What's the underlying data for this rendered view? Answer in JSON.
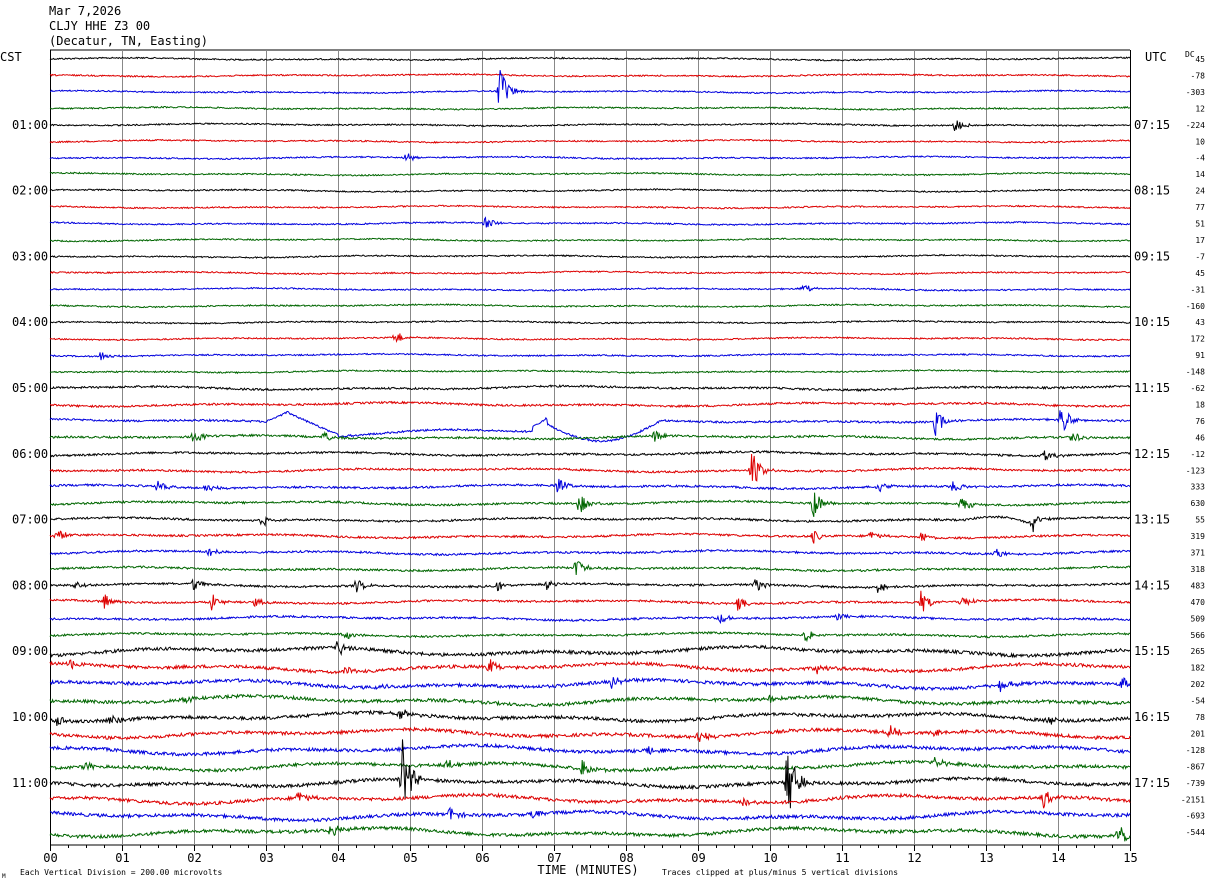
{
  "header": {
    "date": "Mar 7,2026",
    "station": "CLJY HHE Z3 00",
    "location": "(Decatur, TN, Easting)"
  },
  "left_tz": "CST",
  "right_tz": "UTC",
  "dc_label": "DC",
  "footer": {
    "scale_note": "Each Vertical Division =  200.00 microvolts",
    "xlabel": "TIME (MINUTES)",
    "clip_note": "Traces clipped at plus/minus 5 vertical divisions",
    "logo_text": "M"
  },
  "colors": {
    "black": "#000000",
    "red": "#dd0000",
    "blue": "#0000dd",
    "green": "#006600",
    "grid": "#888888"
  },
  "chart_data": {
    "type": "line",
    "x_ticks": [
      "00",
      "01",
      "02",
      "03",
      "04",
      "05",
      "06",
      "07",
      "08",
      "09",
      "10",
      "11",
      "12",
      "13",
      "14",
      "15"
    ],
    "xlim": [
      0,
      15
    ],
    "trace_color_cycle": [
      "black",
      "red",
      "blue",
      "green"
    ],
    "traces_count": 48,
    "left_hour_labels": [
      {
        "trace": 4,
        "text": "01:00"
      },
      {
        "trace": 8,
        "text": "02:00"
      },
      {
        "trace": 12,
        "text": "03:00"
      },
      {
        "trace": 16,
        "text": "04:00"
      },
      {
        "trace": 20,
        "text": "05:00"
      },
      {
        "trace": 24,
        "text": "06:00"
      },
      {
        "trace": 28,
        "text": "07:00"
      },
      {
        "trace": 32,
        "text": "08:00"
      },
      {
        "trace": 36,
        "text": "09:00"
      },
      {
        "trace": 40,
        "text": "10:00"
      },
      {
        "trace": 44,
        "text": "11:00"
      }
    ],
    "right_hour_labels": [
      {
        "trace": 4,
        "text": "07:15"
      },
      {
        "trace": 8,
        "text": "08:15"
      },
      {
        "trace": 12,
        "text": "09:15"
      },
      {
        "trace": 16,
        "text": "10:15"
      },
      {
        "trace": 20,
        "text": "11:15"
      },
      {
        "trace": 24,
        "text": "12:15"
      },
      {
        "trace": 28,
        "text": "13:15"
      },
      {
        "trace": 32,
        "text": "14:15"
      },
      {
        "trace": 36,
        "text": "15:15"
      },
      {
        "trace": 40,
        "text": "16:15"
      },
      {
        "trace": 44,
        "text": "17:15"
      }
    ],
    "dc_offsets": [
      "45",
      "-78",
      "-303",
      "12",
      "-224",
      "10",
      "-4",
      "14",
      "24",
      "77",
      "51",
      "17",
      "-7",
      "45",
      "-31",
      "-160",
      "43",
      "172",
      "91",
      "-148",
      "-62",
      "18",
      "76",
      "46",
      "-12",
      "-123",
      "333",
      "630",
      "55",
      "319",
      "371",
      "318",
      "483",
      "470",
      "509",
      "566",
      "265",
      "182",
      "202",
      "-54",
      "78",
      "201",
      "-128",
      "-867",
      "-739",
      "-2151",
      "-693",
      "-544"
    ],
    "events": [
      {
        "trace": 2,
        "t": 6.25,
        "amp": 1.6
      },
      {
        "trace": 4,
        "t": 12.55,
        "amp": 0.6
      },
      {
        "trace": 6,
        "t": 4.95,
        "amp": 0.4
      },
      {
        "trace": 10,
        "t": 6.05,
        "amp": 0.5
      },
      {
        "trace": 14,
        "t": 10.45,
        "amp": 0.4
      },
      {
        "trace": 17,
        "t": 4.8,
        "amp": 0.5
      },
      {
        "trace": 18,
        "t": 0.7,
        "amp": 0.4
      },
      {
        "trace": 22,
        "t": 12.3,
        "amp": 0.9
      },
      {
        "trace": 22,
        "t": 14.05,
        "amp": 1.2
      },
      {
        "trace": 23,
        "t": 2.0,
        "amp": 0.5
      },
      {
        "trace": 23,
        "t": 3.8,
        "amp": 0.4
      },
      {
        "trace": 23,
        "t": 8.4,
        "amp": 0.4
      },
      {
        "trace": 23,
        "t": 14.2,
        "amp": 0.5
      },
      {
        "trace": 24,
        "t": 13.8,
        "amp": 0.5
      },
      {
        "trace": 25,
        "t": 9.75,
        "amp": 1.4
      },
      {
        "trace": 26,
        "t": 1.5,
        "amp": 0.4
      },
      {
        "trace": 26,
        "t": 2.15,
        "amp": 0.4
      },
      {
        "trace": 26,
        "t": 7.05,
        "amp": 0.6
      },
      {
        "trace": 26,
        "t": 11.5,
        "amp": 0.4
      },
      {
        "trace": 26,
        "t": 12.55,
        "amp": 0.5
      },
      {
        "trace": 27,
        "t": 7.35,
        "amp": 0.8
      },
      {
        "trace": 27,
        "t": 10.6,
        "amp": 1.1
      },
      {
        "trace": 27,
        "t": 12.65,
        "amp": 0.7
      },
      {
        "trace": 28,
        "t": 2.95,
        "amp": 0.4
      },
      {
        "trace": 28,
        "t": 13.65,
        "amp": 0.6
      },
      {
        "trace": 29,
        "t": 0.1,
        "amp": 0.5
      },
      {
        "trace": 29,
        "t": 10.6,
        "amp": 0.5
      },
      {
        "trace": 29,
        "t": 11.4,
        "amp": 0.4
      },
      {
        "trace": 29,
        "t": 12.1,
        "amp": 0.4
      },
      {
        "trace": 30,
        "t": 2.2,
        "amp": 0.5
      },
      {
        "trace": 30,
        "t": 13.15,
        "amp": 0.4
      },
      {
        "trace": 31,
        "t": 7.3,
        "amp": 0.7
      },
      {
        "trace": 32,
        "t": 0.35,
        "amp": 0.4
      },
      {
        "trace": 32,
        "t": 2.0,
        "amp": 0.5
      },
      {
        "trace": 32,
        "t": 4.25,
        "amp": 0.5
      },
      {
        "trace": 32,
        "t": 6.2,
        "amp": 0.4
      },
      {
        "trace": 32,
        "t": 6.9,
        "amp": 0.4
      },
      {
        "trace": 32,
        "t": 9.8,
        "amp": 0.5
      },
      {
        "trace": 32,
        "t": 11.5,
        "amp": 0.4
      },
      {
        "trace": 33,
        "t": 0.75,
        "amp": 0.6
      },
      {
        "trace": 33,
        "t": 2.25,
        "amp": 0.6
      },
      {
        "trace": 33,
        "t": 2.85,
        "amp": 0.3
      },
      {
        "trace": 33,
        "t": 9.55,
        "amp": 0.5
      },
      {
        "trace": 33,
        "t": 12.1,
        "amp": 0.8
      },
      {
        "trace": 33,
        "t": 12.65,
        "amp": 0.5
      },
      {
        "trace": 34,
        "t": 9.3,
        "amp": 0.4
      },
      {
        "trace": 34,
        "t": 10.95,
        "amp": 0.3
      },
      {
        "trace": 35,
        "t": 4.1,
        "amp": 0.4
      },
      {
        "trace": 35,
        "t": 10.5,
        "amp": 0.5
      },
      {
        "trace": 36,
        "t": 4.0,
        "amp": 0.6
      },
      {
        "trace": 37,
        "t": 0.3,
        "amp": 0.4
      },
      {
        "trace": 37,
        "t": 4.1,
        "amp": 0.4
      },
      {
        "trace": 37,
        "t": 6.1,
        "amp": 0.6
      },
      {
        "trace": 37,
        "t": 10.65,
        "amp": 0.4
      },
      {
        "trace": 38,
        "t": 4.55,
        "amp": 0.3
      },
      {
        "trace": 38,
        "t": 7.8,
        "amp": 0.4
      },
      {
        "trace": 38,
        "t": 13.2,
        "amp": 0.5
      },
      {
        "trace": 38,
        "t": 14.9,
        "amp": 0.6
      },
      {
        "trace": 39,
        "t": 1.85,
        "amp": 0.3
      },
      {
        "trace": 39,
        "t": 10.0,
        "amp": 0.4
      },
      {
        "trace": 40,
        "t": 0.1,
        "amp": 0.4
      },
      {
        "trace": 40,
        "t": 0.85,
        "amp": 0.4
      },
      {
        "trace": 40,
        "t": 4.85,
        "amp": 0.5
      },
      {
        "trace": 40,
        "t": 13.85,
        "amp": 0.5
      },
      {
        "trace": 41,
        "t": 9.0,
        "amp": 0.5
      },
      {
        "trace": 41,
        "t": 11.65,
        "amp": 0.5
      },
      {
        "trace": 41,
        "t": 12.3,
        "amp": 0.3
      },
      {
        "trace": 42,
        "t": 8.3,
        "amp": 0.4
      },
      {
        "trace": 43,
        "t": 0.5,
        "amp": 0.4
      },
      {
        "trace": 43,
        "t": 5.5,
        "amp": 0.4
      },
      {
        "trace": 43,
        "t": 7.4,
        "amp": 0.8
      },
      {
        "trace": 43,
        "t": 12.3,
        "amp": 0.4
      },
      {
        "trace": 44,
        "t": 4.9,
        "amp": 3.0
      },
      {
        "trace": 44,
        "t": 10.25,
        "amp": 3.0
      },
      {
        "trace": 45,
        "t": 3.45,
        "amp": 0.6
      },
      {
        "trace": 45,
        "t": 9.65,
        "amp": 0.5
      },
      {
        "trace": 45,
        "t": 13.8,
        "amp": 0.7
      },
      {
        "trace": 46,
        "t": 5.55,
        "amp": 0.5
      },
      {
        "trace": 46,
        "t": 6.7,
        "amp": 0.4
      },
      {
        "trace": 47,
        "t": 3.9,
        "amp": 0.6
      },
      {
        "trace": 47,
        "t": 14.85,
        "amp": 1.2
      }
    ]
  }
}
